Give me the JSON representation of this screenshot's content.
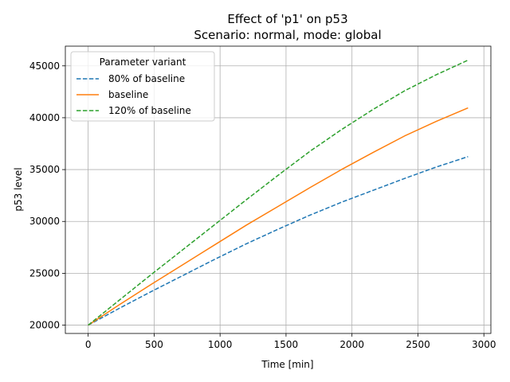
{
  "chart_data": {
    "type": "line",
    "title": "Effect of 'p1' on p53",
    "subtitle": "Scenario: normal, mode: global",
    "xlabel": "Time [min]",
    "ylabel": "p53 level",
    "xlim": [
      -173,
      3053
    ],
    "ylim": [
      19200,
      46900
    ],
    "xticks": [
      0,
      500,
      1000,
      1500,
      2000,
      2500,
      3000
    ],
    "yticks": [
      20000,
      25000,
      30000,
      35000,
      40000,
      45000
    ],
    "grid": true,
    "legend": {
      "title": "Parameter variant",
      "placement": "upper-left"
    },
    "x": [
      0,
      240,
      480,
      720,
      960,
      1200,
      1440,
      1680,
      1920,
      2160,
      2400,
      2640,
      2880
    ],
    "series": [
      {
        "name": "80% of baseline",
        "color": "#1f77b4",
        "dash": "dashed",
        "values": [
          20000,
          21650,
          23250,
          24800,
          26350,
          27850,
          29250,
          30600,
          31850,
          33000,
          34150,
          35250,
          36250
        ]
      },
      {
        "name": "baseline",
        "color": "#ff7f0e",
        "dash": "solid",
        "values": [
          20000,
          22000,
          23950,
          25850,
          27750,
          29650,
          31450,
          33250,
          35000,
          36650,
          38250,
          39650,
          40950
        ]
      },
      {
        "name": "120% of baseline",
        "color": "#2ca02c",
        "dash": "dashed",
        "values": [
          20000,
          22450,
          24900,
          27300,
          29700,
          32100,
          34450,
          36750,
          38850,
          40800,
          42600,
          44150,
          45550
        ]
      }
    ]
  }
}
